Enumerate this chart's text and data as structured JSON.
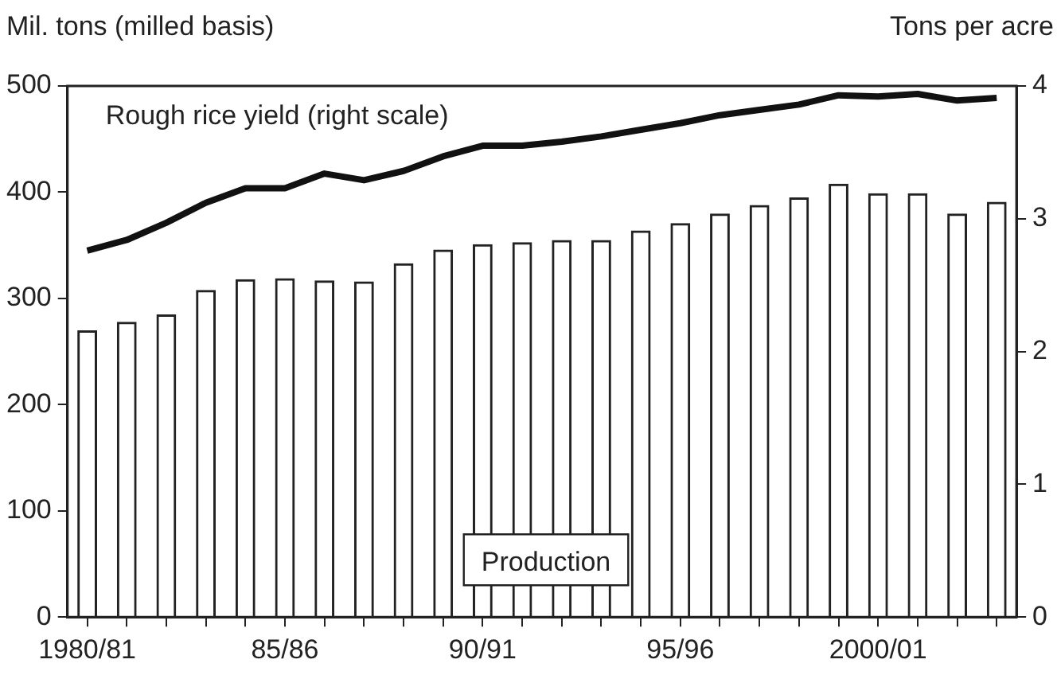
{
  "chart_data": {
    "type": "bar",
    "ylabel": "Mil. tons (milled basis)",
    "y2label": "Tons per acre",
    "categories": [
      "1980/81",
      null,
      null,
      null,
      null,
      "85/86",
      null,
      null,
      null,
      null,
      "90/91",
      null,
      null,
      null,
      null,
      "95/96",
      null,
      null,
      null,
      null,
      "2000/01",
      null,
      null,
      null
    ],
    "series": [
      {
        "name": "Production",
        "color": "#222222",
        "values": [
          270,
          278,
          285,
          308,
          318,
          319,
          317,
          316,
          333,
          346,
          351,
          353,
          355,
          355,
          364,
          371,
          380,
          388,
          395,
          408,
          399,
          399,
          380,
          391
        ]
      },
      {
        "name": "Rough rice yield (right scale)",
        "type": "line",
        "axis": "y2",
        "color": "#111111",
        "values": [
          2.76,
          2.84,
          2.97,
          3.12,
          3.23,
          3.23,
          3.34,
          3.29,
          3.36,
          3.47,
          3.55,
          3.55,
          3.58,
          3.62,
          3.67,
          3.72,
          3.78,
          3.82,
          3.86,
          3.93,
          3.92,
          3.94,
          3.89,
          3.91
        ]
      }
    ],
    "ylim": [
      0,
      500
    ],
    "yticks": [
      0,
      100,
      200,
      300,
      400,
      500
    ],
    "y2lim": [
      0,
      4
    ],
    "y2ticks": [
      0,
      1,
      2,
      3,
      4
    ],
    "grid": false,
    "legend": false
  }
}
